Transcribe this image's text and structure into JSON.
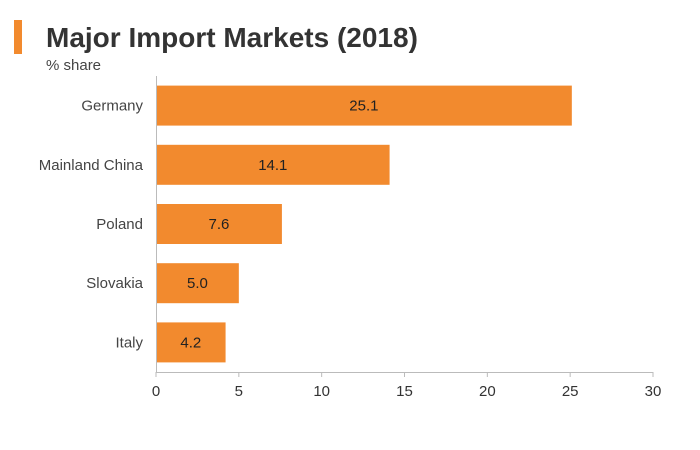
{
  "header": {
    "title": "Major Import Markets (2018)",
    "unit_label": "% share",
    "accent_color": "#f28a2e"
  },
  "chart_data": {
    "type": "bar",
    "orientation": "horizontal",
    "title": "Major Import Markets (2018)",
    "subtitle": "% share",
    "categories": [
      "Germany",
      "Mainland China",
      "Poland",
      "Slovakia",
      "Italy"
    ],
    "values": [
      25.1,
      14.1,
      7.6,
      5.0,
      4.2
    ],
    "value_labels": [
      "25.1",
      "14.1",
      "7.6",
      "5.0",
      "4.2"
    ],
    "xlim": [
      0,
      30
    ],
    "xticks": [
      0,
      5,
      10,
      15,
      20,
      25,
      30
    ],
    "bar_color": "#f28a2e",
    "grid": false,
    "legend": "none"
  }
}
